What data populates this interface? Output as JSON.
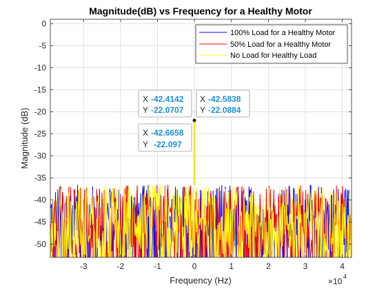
{
  "chart_data": {
    "type": "line",
    "title": "Magnitude(dB) vs Frequency for a Healthy Motor",
    "xlabel": "Frequency (Hz)",
    "ylabel": "Magnitude (dB)",
    "x_exponent_label": "×10",
    "x_exponent_power": "4",
    "xlim": [
      -39000,
      42500
    ],
    "ylim": [
      -53,
      1
    ],
    "x_tick_values": [
      -30000,
      -20000,
      -10000,
      0,
      10000,
      20000,
      30000,
      40000
    ],
    "x_tick_labels": [
      "-3",
      "-2",
      "-1",
      "0",
      "1",
      "2",
      "3",
      "4"
    ],
    "y_ticks": [
      0,
      -5,
      -10,
      -15,
      -20,
      -25,
      -30,
      -35,
      -40,
      -45,
      -50
    ],
    "grid": true,
    "legend_position": "top-right",
    "noise_floor_range": [
      -53,
      -36.5
    ],
    "series": [
      {
        "name": "100% Load for a Healthy Motor",
        "color": "#0000ff",
        "peak": {
          "x": -42.5838,
          "y": -22.0884
        }
      },
      {
        "name": "50% Load for a Healthy Motor",
        "color": "#ff0000",
        "peak": {
          "x": -42.4142,
          "y": -22.0707
        }
      },
      {
        "name": "No Load for Healthy Load",
        "color": "#ffff00",
        "peak": {
          "x": -42.6658,
          "y": -22.097
        }
      }
    ],
    "datatips": [
      {
        "x_key": "X",
        "x_value": "-42.4142",
        "y_key": "Y",
        "y_value": "-22.0707"
      },
      {
        "x_key": "X",
        "x_value": "-42.5838",
        "y_key": "Y",
        "y_value": "-22.0884"
      },
      {
        "x_key": "X",
        "x_value": "-42.6658",
        "y_key": "Y",
        "y_value": "-22.097"
      }
    ]
  }
}
